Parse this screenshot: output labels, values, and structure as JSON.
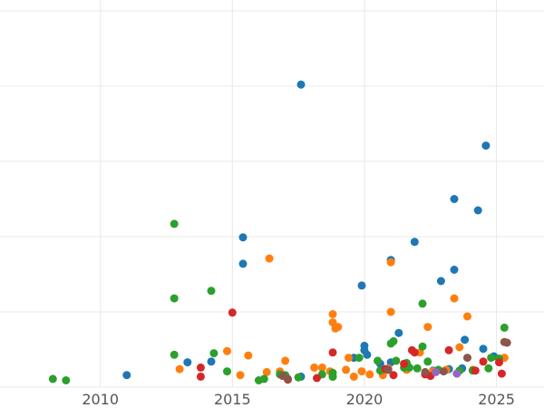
{
  "chart_data": {
    "type": "scatter",
    "title": "",
    "xlabel": "",
    "ylabel": "",
    "xlim": [
      2006.2,
      2026.8
    ],
    "ylim": [
      0,
      50
    ],
    "x_ticks": [
      2010,
      2015,
      2020,
      2025
    ],
    "x_tick_labels": [
      "2010",
      "2015",
      "2020",
      "2025"
    ],
    "y_gridlines": [
      0,
      10,
      20,
      30,
      40,
      50
    ],
    "y_tick_labels_visible": false,
    "grid": true,
    "legend": "none",
    "series": [
      {
        "color": "#1f77b4",
        "points": [
          [
            2011.0,
            1.6
          ],
          [
            2013.3,
            3.3
          ],
          [
            2014.2,
            3.4
          ],
          [
            2015.4,
            19.9
          ],
          [
            2015.4,
            16.4
          ],
          [
            2017.6,
            40.2
          ],
          [
            2017.6,
            1.4
          ],
          [
            2019.6,
            3.9
          ],
          [
            2019.9,
            13.5
          ],
          [
            2020.0,
            5.5
          ],
          [
            2020.0,
            4.9
          ],
          [
            2020.1,
            4.3
          ],
          [
            2020.6,
            3.1
          ],
          [
            2021.0,
            16.9
          ],
          [
            2021.0,
            3.3
          ],
          [
            2021.3,
            7.2
          ],
          [
            2021.9,
            19.3
          ],
          [
            2022.6,
            2.2
          ],
          [
            2022.9,
            14.1
          ],
          [
            2023.2,
            2.4
          ],
          [
            2023.4,
            25.0
          ],
          [
            2023.4,
            15.6
          ],
          [
            2023.7,
            2.5
          ],
          [
            2023.8,
            6.3
          ],
          [
            2024.3,
            23.5
          ],
          [
            2024.5,
            5.1
          ],
          [
            2024.6,
            32.1
          ],
          [
            2024.9,
            4.1
          ]
        ]
      },
      {
        "color": "#ff7f0e",
        "points": [
          [
            2013.0,
            2.4
          ],
          [
            2014.8,
            4.8
          ],
          [
            2015.3,
            1.6
          ],
          [
            2015.6,
            4.2
          ],
          [
            2016.3,
            2.0
          ],
          [
            2016.4,
            17.1
          ],
          [
            2016.8,
            2.1
          ],
          [
            2017.0,
            3.5
          ],
          [
            2018.1,
            2.6
          ],
          [
            2018.4,
            2.6
          ],
          [
            2018.7,
            2.1
          ],
          [
            2018.8,
            9.7
          ],
          [
            2018.8,
            8.6
          ],
          [
            2018.9,
            7.8
          ],
          [
            2019.0,
            8.0
          ],
          [
            2019.3,
            2.3
          ],
          [
            2019.4,
            3.9
          ],
          [
            2019.6,
            1.4
          ],
          [
            2019.9,
            2.1
          ],
          [
            2020.2,
            1.7
          ],
          [
            2020.7,
            1.6
          ],
          [
            2020.9,
            2.5
          ],
          [
            2021.0,
            10.0
          ],
          [
            2021.0,
            16.6
          ],
          [
            2021.6,
            2.3
          ],
          [
            2022.1,
            4.6
          ],
          [
            2022.4,
            8.0
          ],
          [
            2022.6,
            2.1
          ],
          [
            2023.1,
            2.3
          ],
          [
            2023.4,
            11.8
          ],
          [
            2023.6,
            5.3
          ],
          [
            2023.9,
            9.4
          ],
          [
            2024.1,
            2.3
          ],
          [
            2025.3,
            3.9
          ]
        ]
      },
      {
        "color": "#2ca02c",
        "points": [
          [
            2008.2,
            1.1
          ],
          [
            2008.7,
            0.9
          ],
          [
            2012.8,
            4.3
          ],
          [
            2012.8,
            11.8
          ],
          [
            2012.8,
            21.7
          ],
          [
            2014.2,
            12.8
          ],
          [
            2014.3,
            4.5
          ],
          [
            2014.8,
            2.1
          ],
          [
            2016.0,
            0.9
          ],
          [
            2016.2,
            1.1
          ],
          [
            2016.8,
            1.7
          ],
          [
            2017.0,
            1.6
          ],
          [
            2017.5,
            1.3
          ],
          [
            2018.4,
            1.7
          ],
          [
            2018.8,
            1.4
          ],
          [
            2018.8,
            1.9
          ],
          [
            2018.8,
            1.4
          ],
          [
            2019.8,
            3.9
          ],
          [
            2020.5,
            3.5
          ],
          [
            2020.6,
            2.2
          ],
          [
            2021.0,
            5.8
          ],
          [
            2021.1,
            6.1
          ],
          [
            2021.2,
            3.5
          ],
          [
            2021.5,
            2.6
          ],
          [
            2021.6,
            3.2
          ],
          [
            2021.7,
            2.6
          ],
          [
            2022.0,
            2.5
          ],
          [
            2022.2,
            5.4
          ],
          [
            2022.2,
            11.1
          ],
          [
            2022.4,
            3.4
          ],
          [
            2022.8,
            2.3
          ],
          [
            2023.6,
            2.2
          ],
          [
            2024.1,
            2.2
          ],
          [
            2024.7,
            2.5
          ],
          [
            2024.8,
            3.9
          ],
          [
            2025.1,
            3.8
          ],
          [
            2025.3,
            7.9
          ]
        ]
      },
      {
        "color": "#d62728",
        "points": [
          [
            2013.8,
            2.6
          ],
          [
            2013.8,
            1.4
          ],
          [
            2015.0,
            9.9
          ],
          [
            2017.1,
            1.0
          ],
          [
            2018.2,
            1.2
          ],
          [
            2018.8,
            4.6
          ],
          [
            2020.8,
            2.4
          ],
          [
            2021.1,
            1.6
          ],
          [
            2021.5,
            3.1
          ],
          [
            2021.8,
            4.9
          ],
          [
            2021.9,
            4.6
          ],
          [
            2022.3,
            1.7
          ],
          [
            2022.5,
            1.5
          ],
          [
            2023.2,
            4.9
          ],
          [
            2024.2,
            2.2
          ],
          [
            2024.5,
            3.4
          ],
          [
            2025.1,
            3.3
          ],
          [
            2025.2,
            1.8
          ]
        ]
      },
      {
        "color": "#9467bd",
        "points": [
          [
            2022.7,
            2.0
          ],
          [
            2023.5,
            1.8
          ]
        ]
      },
      {
        "color": "#8c564b",
        "points": [
          [
            2016.9,
            1.5
          ],
          [
            2017.1,
            1.1
          ],
          [
            2020.9,
            2.3
          ],
          [
            2022.3,
            2.0
          ],
          [
            2023.0,
            2.1
          ],
          [
            2023.9,
            3.9
          ],
          [
            2025.3,
            6.0
          ],
          [
            2025.4,
            5.9
          ]
        ]
      }
    ]
  }
}
